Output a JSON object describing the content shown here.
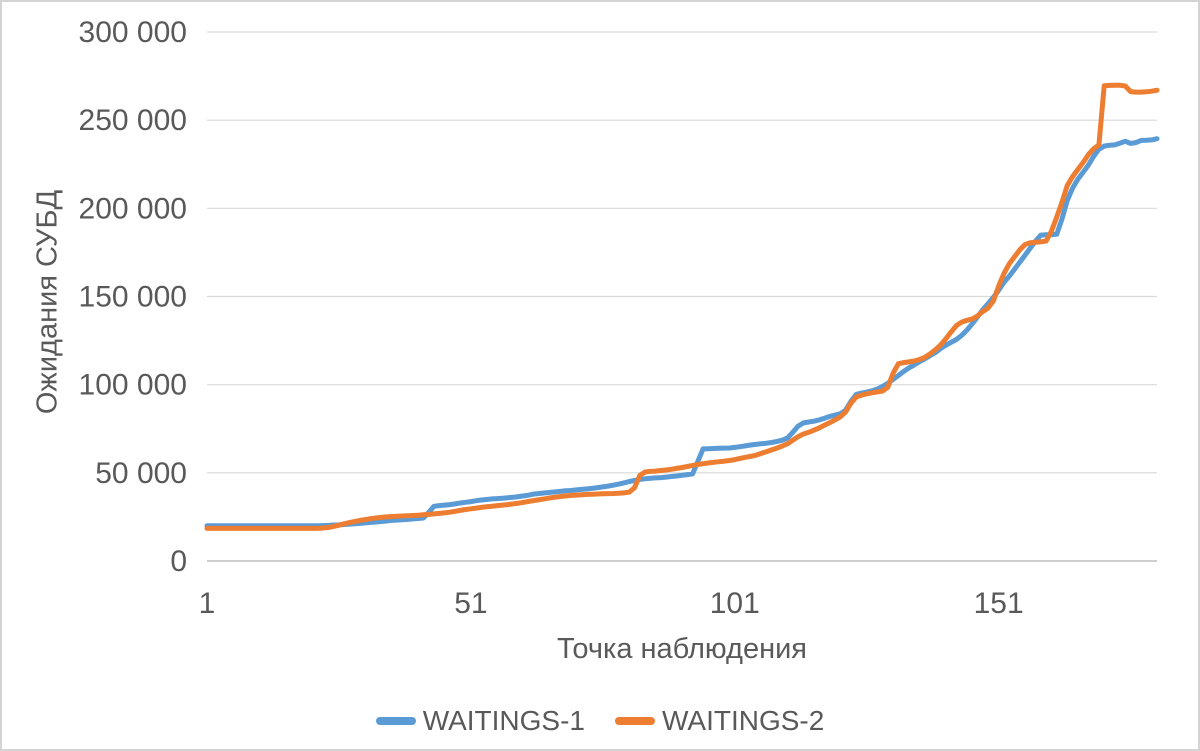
{
  "window": {
    "background": "#FFFFFF",
    "border_color": "#D4D4D4"
  },
  "chart_data": {
    "type": "line",
    "title": "",
    "xlabel": "Точка наблюдения",
    "ylabel": "Ожидания СУБД",
    "xlim": [
      1,
      181
    ],
    "ylim": [
      0,
      300000
    ],
    "grid": "horizontal",
    "legend_position": "bottom",
    "colors": {
      "grid": "#D9D9D9",
      "axis": "#BFBFBF",
      "text": "#595959"
    },
    "x_ticks": [
      {
        "value": 1,
        "label": "1"
      },
      {
        "value": 51,
        "label": "51"
      },
      {
        "value": 101,
        "label": "101"
      },
      {
        "value": 151,
        "label": "151"
      }
    ],
    "y_ticks": [
      {
        "value": 0,
        "label": "0"
      },
      {
        "value": 50000,
        "label": "50 000"
      },
      {
        "value": 100000,
        "label": "100 000"
      },
      {
        "value": 150000,
        "label": "150 000"
      },
      {
        "value": 200000,
        "label": "200 000"
      },
      {
        "value": 250000,
        "label": "250 000"
      },
      {
        "value": 300000,
        "label": "300 000"
      }
    ],
    "series": [
      {
        "name": "WAITINGS-1",
        "color": "#5B9BD5",
        "x_start": 1,
        "values": [
          20000,
          20000,
          20000,
          20000,
          20000,
          20000,
          20000,
          20000,
          20000,
          20000,
          20000,
          20000,
          20000,
          20000,
          20000,
          20000,
          20000,
          20000,
          20000,
          20000,
          20000,
          20000,
          20100,
          20200,
          20400,
          20500,
          20700,
          20900,
          21100,
          21300,
          21600,
          21900,
          22100,
          22400,
          22700,
          23000,
          23200,
          23400,
          23600,
          23900,
          24100,
          24400,
          27500,
          31000,
          31400,
          31700,
          32000,
          32400,
          32900,
          33300,
          33700,
          34200,
          34600,
          34900,
          35200,
          35400,
          35600,
          35900,
          36100,
          36500,
          36900,
          37400,
          38000,
          38300,
          38600,
          38900,
          39200,
          39500,
          39800,
          40000,
          40300,
          40600,
          40900,
          41200,
          41600,
          42000,
          42500,
          43000,
          43600,
          44300,
          45000,
          45700,
          46300,
          46600,
          46900,
          47100,
          47300,
          47600,
          47900,
          48200,
          48600,
          49000,
          49400,
          56500,
          63600,
          63700,
          63800,
          63900,
          64000,
          64100,
          64400,
          64800,
          65300,
          65800,
          66100,
          66500,
          66800,
          67200,
          67800,
          68500,
          69800,
          73000,
          76500,
          78300,
          78800,
          79300,
          80000,
          81000,
          82000,
          82800,
          83500,
          85500,
          90500,
          94500,
          95200,
          95800,
          96500,
          97500,
          99000,
          100800,
          103000,
          105200,
          107500,
          109500,
          111200,
          113000,
          114600,
          116500,
          118200,
          120500,
          122400,
          124000,
          125600,
          128000,
          131000,
          134500,
          138500,
          142500,
          146000,
          149500,
          153500,
          158000,
          161500,
          165500,
          169500,
          173500,
          177500,
          181500,
          184800,
          185000,
          185100,
          185300,
          194000,
          204500,
          211500,
          216500,
          220500,
          224500,
          229500,
          233500,
          235300,
          235800,
          236000,
          237000,
          238000,
          236800,
          237300,
          238500,
          238600,
          238800,
          239500
        ]
      },
      {
        "name": "WAITINGS-2",
        "color": "#ED7D31",
        "x_start": 1,
        "values": [
          18500,
          18500,
          18500,
          18500,
          18500,
          18500,
          18500,
          18500,
          18500,
          18500,
          18500,
          18500,
          18500,
          18500,
          18500,
          18500,
          18500,
          18500,
          18500,
          18500,
          18500,
          18500,
          18700,
          19000,
          19600,
          20300,
          21100,
          21800,
          22400,
          23000,
          23500,
          24000,
          24400,
          24700,
          25000,
          25200,
          25350,
          25500,
          25650,
          25800,
          26000,
          26200,
          26450,
          26700,
          27000,
          27300,
          27700,
          28200,
          28700,
          29200,
          29600,
          30000,
          30400,
          30800,
          31100,
          31400,
          31700,
          32000,
          32400,
          32800,
          33300,
          33800,
          34300,
          34800,
          35300,
          35800,
          36200,
          36600,
          36900,
          37200,
          37400,
          37600,
          37750,
          37900,
          38000,
          38100,
          38200,
          38300,
          38450,
          38600,
          39000,
          41500,
          48500,
          50500,
          50800,
          51000,
          51300,
          51600,
          52000,
          52500,
          53000,
          53600,
          54200,
          54800,
          55200,
          55600,
          56000,
          56300,
          56600,
          57000,
          57500,
          58200,
          58800,
          59300,
          60000,
          61000,
          62000,
          63000,
          64000,
          65200,
          66500,
          68500,
          70500,
          72000,
          73000,
          74200,
          75500,
          77000,
          78500,
          80000,
          81800,
          84500,
          89500,
          93000,
          94000,
          94800,
          95400,
          95900,
          96400,
          98500,
          106500,
          111900,
          112500,
          112900,
          113400,
          114200,
          115500,
          117500,
          119800,
          122500,
          126000,
          130000,
          133500,
          135500,
          136500,
          137300,
          139000,
          141500,
          143500,
          147500,
          156000,
          163000,
          168500,
          172500,
          176500,
          179500,
          180500,
          180800,
          181000,
          181500,
          187000,
          195000,
          203500,
          213000,
          218000,
          222000,
          226000,
          230500,
          233800,
          236000,
          269500,
          269700,
          269800,
          269800,
          269400,
          266200,
          265900,
          265900,
          266100,
          266400,
          267000
        ]
      }
    ]
  }
}
